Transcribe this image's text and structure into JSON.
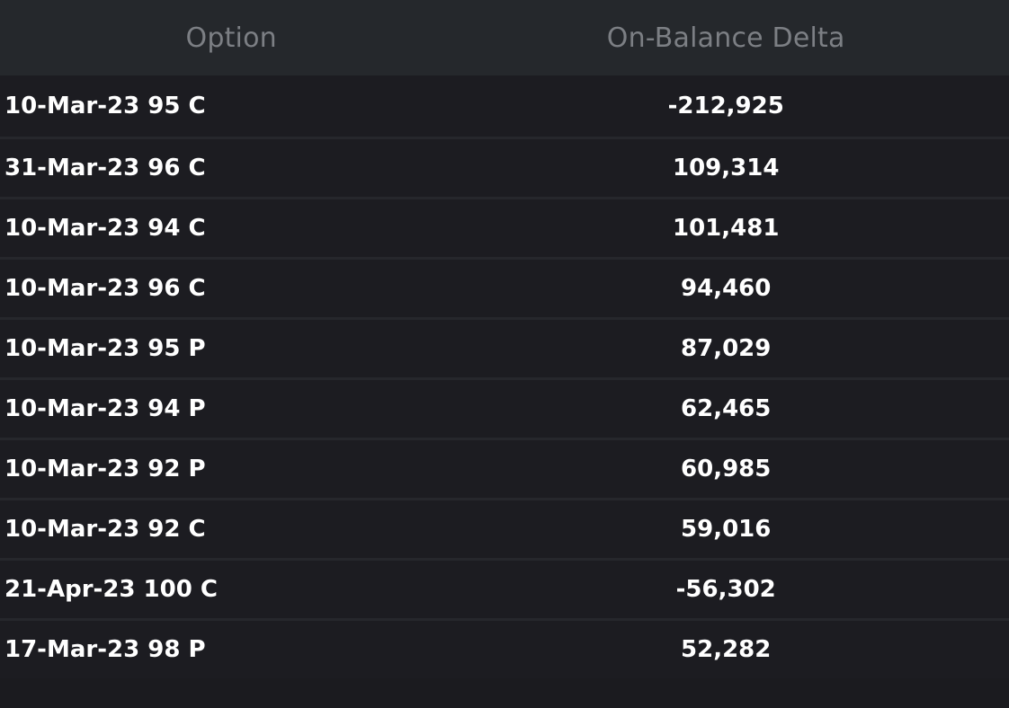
{
  "table": {
    "headers": {
      "option": "Option",
      "delta": "On-Balance Delta"
    },
    "rows": [
      {
        "option": "10-Mar-23 95 C",
        "delta": "-212,925"
      },
      {
        "option": "31-Mar-23 96 C",
        "delta": "109,314"
      },
      {
        "option": "10-Mar-23 94 C",
        "delta": "101,481"
      },
      {
        "option": "10-Mar-23 96 C",
        "delta": "94,460"
      },
      {
        "option": "10-Mar-23 95 P",
        "delta": "87,029"
      },
      {
        "option": "10-Mar-23 94 P",
        "delta": "62,465"
      },
      {
        "option": "10-Mar-23 92 P",
        "delta": "60,985"
      },
      {
        "option": "10-Mar-23 92 C",
        "delta": "59,016"
      },
      {
        "option": "21-Apr-23 100 C",
        "delta": "-56,302"
      },
      {
        "option": "17-Mar-23 98 P",
        "delta": "52,282"
      }
    ]
  },
  "colors": {
    "background": "#1b1b1f",
    "header_background": "#25282c",
    "header_text": "#7c7f84",
    "row_text": "#ffffff",
    "row_divider": "#26272c"
  }
}
